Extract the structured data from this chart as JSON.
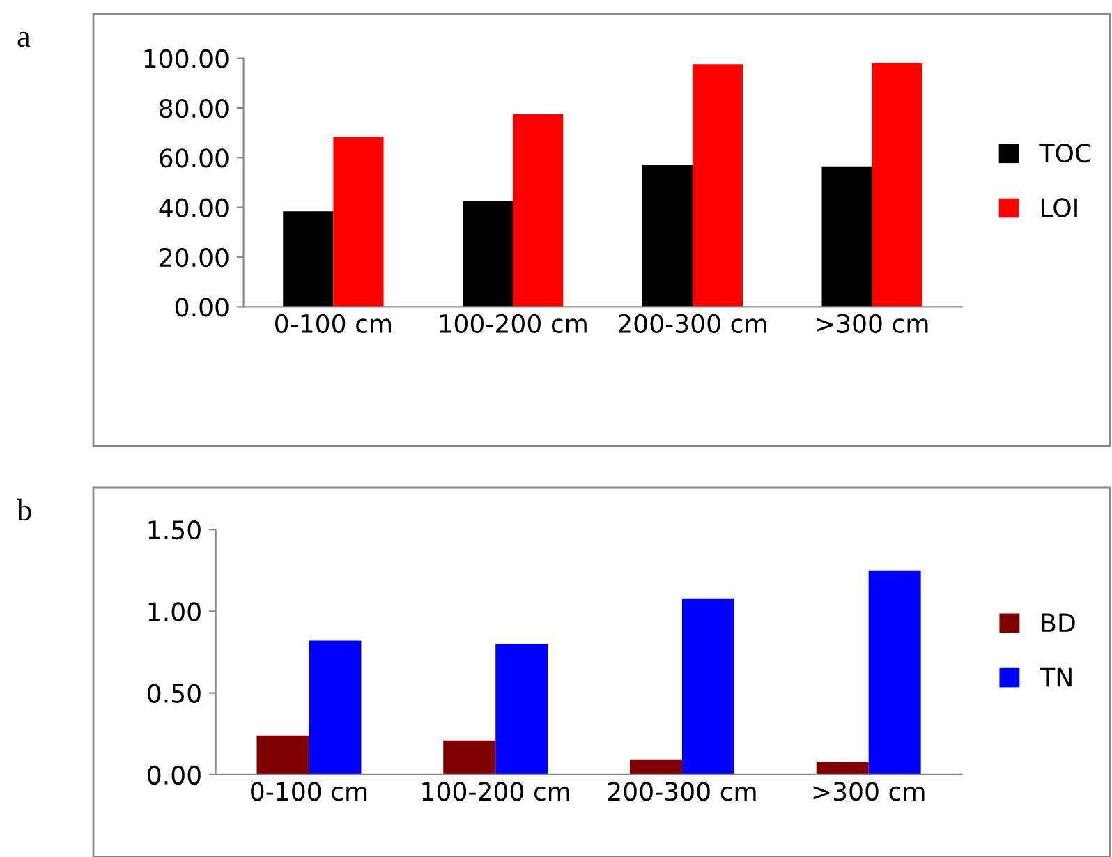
{
  "chart_data": [
    {
      "type": "bar",
      "annotations": [
        "a"
      ],
      "categories": [
        "0-100 cm",
        "100-200 cm",
        "200-300 cm",
        ">300 cm"
      ],
      "series": [
        {
          "name": "TOC",
          "color": "#000000",
          "values": [
            38.4,
            42.4,
            57.0,
            56.5
          ]
        },
        {
          "name": "LOI",
          "color": "#ff0000",
          "values": [
            68.4,
            77.5,
            97.6,
            98.2
          ]
        }
      ],
      "ylim": [
        0,
        100
      ],
      "yticks": [
        {
          "value": 0,
          "label": "0.00"
        },
        {
          "value": 20,
          "label": "20.00"
        },
        {
          "value": 40,
          "label": "40.00"
        },
        {
          "value": 60,
          "label": "60.00"
        },
        {
          "value": 80,
          "label": "80.00"
        },
        {
          "value": 100,
          "label": "100.00"
        }
      ],
      "legend": "right"
    },
    {
      "type": "bar",
      "annotations": [
        "b"
      ],
      "categories": [
        "0-100 cm",
        "100-200 cm",
        "200-300 cm",
        ">300 cm"
      ],
      "series": [
        {
          "name": "BD",
          "color": "#800000",
          "values": [
            0.24,
            0.21,
            0.09,
            0.08
          ]
        },
        {
          "name": "TN",
          "color": "#0000ff",
          "values": [
            0.82,
            0.8,
            1.08,
            1.25
          ]
        }
      ],
      "ylim": [
        0,
        1.5
      ],
      "yticks": [
        {
          "value": 0,
          "label": "0.00"
        },
        {
          "value": 0.5,
          "label": "0.50"
        },
        {
          "value": 1.0,
          "label": "1.00"
        },
        {
          "value": 1.5,
          "label": "1.50"
        }
      ],
      "legend": "right"
    }
  ]
}
